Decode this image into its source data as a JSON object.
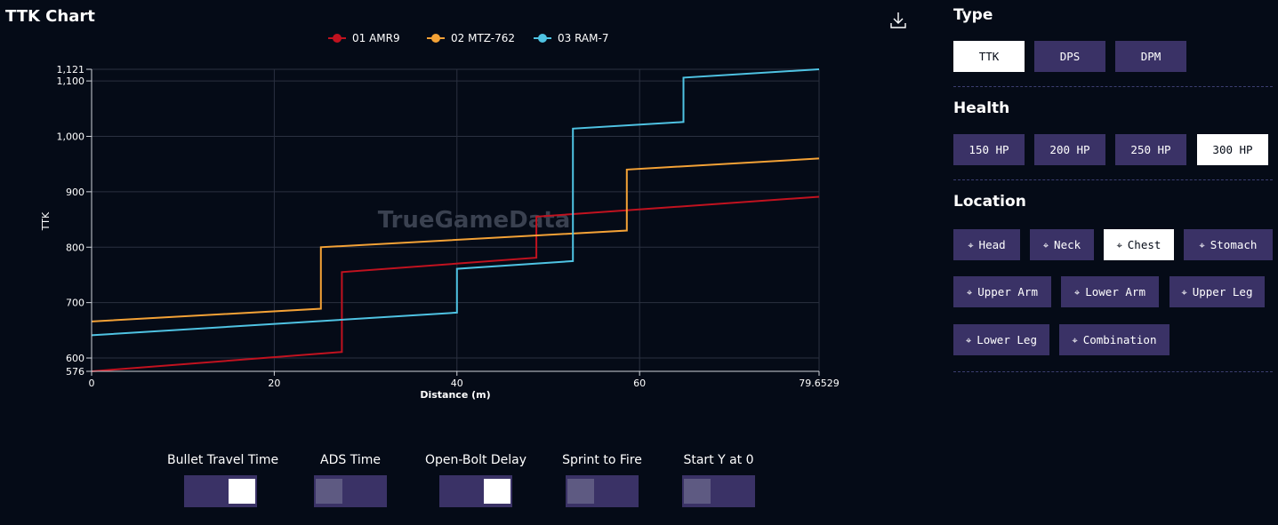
{
  "chart_title": "TTK Chart",
  "download_icon": "download-icon",
  "chart_data": {
    "type": "line",
    "step": true,
    "xlabel": "Distance (m)",
    "ylabel": "TTK",
    "xlim": [
      0,
      79.6529
    ],
    "ylim": [
      576,
      1121
    ],
    "x_ticks": [
      "0",
      "20",
      "40",
      "60",
      "79.6529"
    ],
    "x_tick_values": [
      0,
      20,
      40,
      60,
      79.6529
    ],
    "y_ticks": [
      "576",
      "600",
      "700",
      "800",
      "900",
      "1,000",
      "1,100",
      "1,121"
    ],
    "y_tick_values": [
      576,
      600,
      700,
      800,
      900,
      1000,
      1100,
      1121
    ],
    "grid": true,
    "legend_position": "top-center",
    "watermark": "TrueGameData",
    "series": [
      {
        "name": "01 AMR9",
        "color": "#c1121f",
        "points": [
          [
            0,
            576
          ],
          [
            27.4,
            611
          ],
          [
            27.4,
            755
          ],
          [
            48.7,
            781
          ],
          [
            48.7,
            855
          ],
          [
            79.6529,
            891
          ]
        ]
      },
      {
        "name": "02 MTZ-762",
        "color": "#f4a236",
        "points": [
          [
            0,
            666
          ],
          [
            25.1,
            689
          ],
          [
            25.1,
            800
          ],
          [
            58.6,
            830
          ],
          [
            58.6,
            940
          ],
          [
            79.6529,
            960
          ]
        ]
      },
      {
        "name": "03 RAM-7",
        "color": "#4fc3e3",
        "points": [
          [
            0,
            641
          ],
          [
            40,
            682
          ],
          [
            40,
            761
          ],
          [
            52.7,
            775
          ],
          [
            52.7,
            1014
          ],
          [
            64.8,
            1026
          ],
          [
            64.8,
            1106
          ],
          [
            79.6529,
            1121
          ]
        ]
      }
    ]
  },
  "toggles": [
    {
      "label": "Bullet Travel Time",
      "on": true
    },
    {
      "label": "ADS Time",
      "on": false
    },
    {
      "label": "Open-Bolt Delay",
      "on": true
    },
    {
      "label": "Sprint to Fire",
      "on": false
    },
    {
      "label": "Start Y at 0",
      "on": false
    }
  ],
  "panel": {
    "type": {
      "title": "Type",
      "options": [
        {
          "label": "TTK",
          "selected": true
        },
        {
          "label": "DPS",
          "selected": false
        },
        {
          "label": "DPM",
          "selected": false
        }
      ]
    },
    "health": {
      "title": "Health",
      "options": [
        {
          "label": "150 HP",
          "selected": false
        },
        {
          "label": "200 HP",
          "selected": false
        },
        {
          "label": "250 HP",
          "selected": false
        },
        {
          "label": "300 HP",
          "selected": true
        }
      ]
    },
    "location": {
      "title": "Location",
      "icon": "crosshair-icon",
      "options": [
        {
          "label": "Head",
          "selected": false
        },
        {
          "label": "Neck",
          "selected": false
        },
        {
          "label": "Chest",
          "selected": true
        },
        {
          "label": "Stomach",
          "selected": false
        },
        {
          "label": "Upper Arm",
          "selected": false
        },
        {
          "label": "Lower Arm",
          "selected": false
        },
        {
          "label": "Upper Leg",
          "selected": false
        },
        {
          "label": "Lower Leg",
          "selected": false
        },
        {
          "label": "Combination",
          "selected": false
        }
      ]
    }
  }
}
